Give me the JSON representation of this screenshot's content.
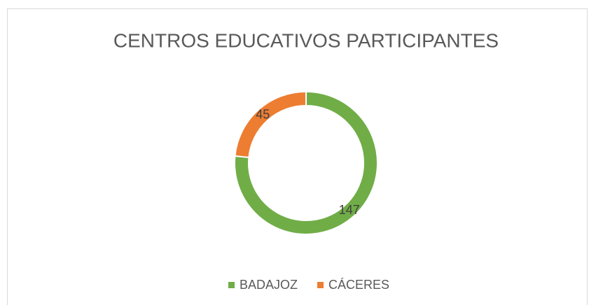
{
  "chart_data": {
    "type": "doughnut",
    "title": "CENTROS EDUCATIVOS PARTICIPANTES",
    "categories": [
      "BADAJOZ",
      "CÁCERES"
    ],
    "values": [
      147,
      45
    ],
    "colors": [
      "#70ad47",
      "#ed7d31"
    ],
    "legend": "bottom"
  }
}
